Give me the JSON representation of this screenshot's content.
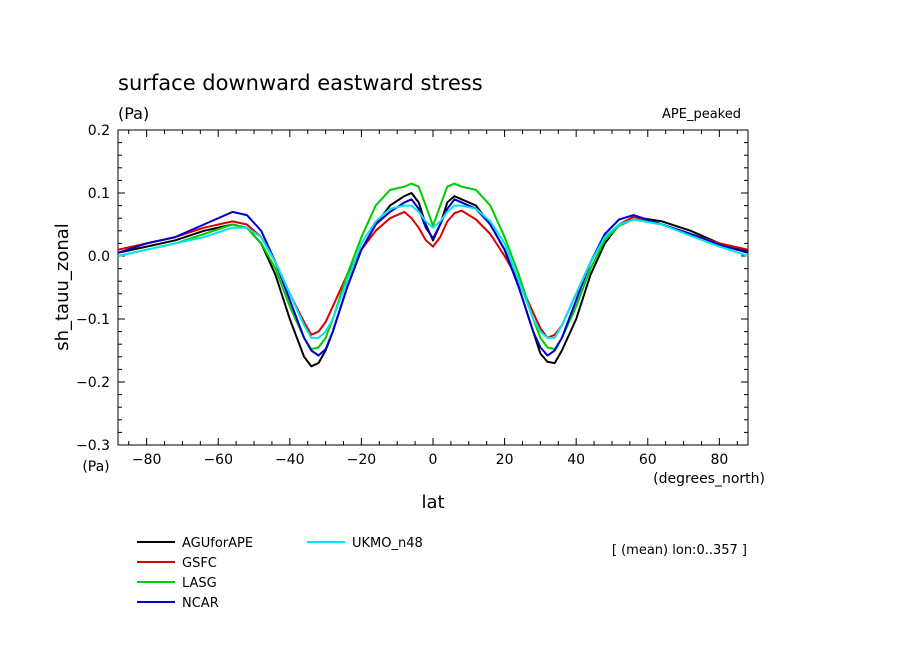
{
  "chart_data": {
    "type": "line",
    "title": "surface downward eastward stress",
    "units": "(Pa)",
    "experiment": "APE_peaked",
    "xlabel": "lat",
    "ylabel": "sh_tauu_zonal",
    "y_unit_label": "(Pa)",
    "x_unit_label": "(degrees_north)",
    "note": "[ (mean) lon:0..357 ]",
    "xlim": [
      -88,
      88
    ],
    "ylim": [
      -0.3,
      0.2
    ],
    "x_ticks": [
      -80,
      -60,
      -40,
      -20,
      0,
      20,
      40,
      60,
      80
    ],
    "x_tick_labels": [
      "−80",
      "−60",
      "−40",
      "−20",
      "0",
      "20",
      "40",
      "60",
      "80"
    ],
    "y_ticks": [
      0.2,
      0.1,
      0.0,
      -0.1,
      -0.2,
      -0.3
    ],
    "y_tick_labels": [
      "0.2",
      "0.1",
      "0.0",
      "−0.1",
      "−0.2",
      "−0.3"
    ],
    "x": [
      -88,
      -80,
      -72,
      -64,
      -56,
      -52,
      -48,
      -44,
      -40,
      -36,
      -34,
      -32,
      -30,
      -28,
      -24,
      -20,
      -16,
      -12,
      -8,
      -6,
      -4,
      -2,
      0,
      2,
      4,
      6,
      8,
      12,
      16,
      20,
      24,
      28,
      30,
      32,
      34,
      36,
      40,
      44,
      48,
      52,
      56,
      64,
      72,
      80,
      88
    ],
    "series": [
      {
        "name": "AGUforAPE",
        "color": "#000000",
        "values": [
          0.005,
          0.015,
          0.025,
          0.04,
          0.05,
          0.045,
          0.02,
          -0.03,
          -0.1,
          -0.16,
          -0.175,
          -0.17,
          -0.15,
          -0.12,
          -0.05,
          0.01,
          0.05,
          0.08,
          0.095,
          0.1,
          0.085,
          0.05,
          0.025,
          0.05,
          0.085,
          0.095,
          0.09,
          0.08,
          0.05,
          0.01,
          -0.05,
          -0.12,
          -0.155,
          -0.168,
          -0.17,
          -0.15,
          -0.1,
          -0.03,
          0.02,
          0.05,
          0.062,
          0.055,
          0.04,
          0.02,
          0.008
        ]
      },
      {
        "name": "GSFC",
        "color": "#dd0000",
        "values": [
          0.01,
          0.02,
          0.03,
          0.045,
          0.055,
          0.05,
          0.03,
          -0.01,
          -0.06,
          -0.105,
          -0.125,
          -0.12,
          -0.105,
          -0.08,
          -0.03,
          0.01,
          0.04,
          0.06,
          0.07,
          0.06,
          0.045,
          0.025,
          0.015,
          0.03,
          0.055,
          0.068,
          0.072,
          0.058,
          0.035,
          0.0,
          -0.04,
          -0.09,
          -0.115,
          -0.13,
          -0.125,
          -0.11,
          -0.06,
          -0.01,
          0.03,
          0.05,
          0.062,
          0.05,
          0.035,
          0.02,
          0.01
        ]
      },
      {
        "name": "LASG",
        "color": "#00cc00",
        "values": [
          0.0,
          0.01,
          0.02,
          0.035,
          0.05,
          0.045,
          0.02,
          -0.02,
          -0.08,
          -0.13,
          -0.148,
          -0.145,
          -0.13,
          -0.1,
          -0.03,
          0.03,
          0.08,
          0.105,
          0.11,
          0.115,
          0.11,
          0.08,
          0.048,
          0.08,
          0.11,
          0.115,
          0.11,
          0.105,
          0.08,
          0.03,
          -0.03,
          -0.1,
          -0.13,
          -0.145,
          -0.148,
          -0.13,
          -0.08,
          -0.02,
          0.025,
          0.048,
          0.058,
          0.05,
          0.035,
          0.018,
          0.005
        ]
      },
      {
        "name": "NCAR",
        "color": "#0000cc",
        "values": [
          0.005,
          0.02,
          0.03,
          0.05,
          0.07,
          0.065,
          0.04,
          -0.01,
          -0.07,
          -0.13,
          -0.15,
          -0.158,
          -0.148,
          -0.12,
          -0.05,
          0.01,
          0.05,
          0.07,
          0.085,
          0.09,
          0.075,
          0.045,
          0.028,
          0.05,
          0.075,
          0.09,
          0.085,
          0.075,
          0.05,
          0.01,
          -0.05,
          -0.12,
          -0.145,
          -0.158,
          -0.15,
          -0.13,
          -0.07,
          -0.01,
          0.035,
          0.058,
          0.065,
          0.05,
          0.035,
          0.018,
          0.005
        ]
      },
      {
        "name": "UKMO_n48",
        "color": "#00e5ee",
        "values": [
          0.0,
          0.01,
          0.02,
          0.03,
          0.045,
          0.045,
          0.03,
          -0.01,
          -0.06,
          -0.11,
          -0.13,
          -0.13,
          -0.12,
          -0.1,
          -0.04,
          0.02,
          0.055,
          0.075,
          0.08,
          0.08,
          0.07,
          0.055,
          0.045,
          0.055,
          0.07,
          0.08,
          0.08,
          0.075,
          0.055,
          0.02,
          -0.04,
          -0.1,
          -0.12,
          -0.13,
          -0.13,
          -0.11,
          -0.06,
          -0.01,
          0.03,
          0.05,
          0.058,
          0.05,
          0.032,
          0.015,
          0.0
        ]
      }
    ],
    "grid": false,
    "legend_position": "bottom-left"
  }
}
